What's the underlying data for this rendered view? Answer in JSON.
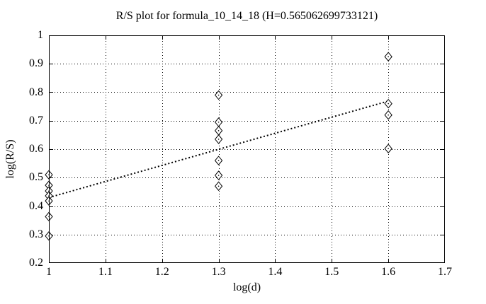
{
  "title": "R/S plot for formula_10_14_18 (H=0.565062699733121)",
  "chart_data": {
    "type": "scatter",
    "title": "R/S plot for formula_10_14_18 (H=0.565062699733121)",
    "xlabel": "log(d)",
    "ylabel": "log(R/S)",
    "xlim": [
      1,
      1.7
    ],
    "ylim": [
      0.2,
      1
    ],
    "xticks": [
      1,
      1.1,
      1.2,
      1.3,
      1.4,
      1.5,
      1.6,
      1.7
    ],
    "xtick_labels": [
      "1",
      "1.1",
      "1.2",
      "1.3",
      "1.4",
      "1.5",
      "1.6",
      "1.7"
    ],
    "yticks": [
      0.2,
      0.3,
      0.4,
      0.5,
      0.6,
      0.7,
      0.8,
      0.9,
      1
    ],
    "ytick_labels": [
      "0.2",
      "0.3",
      "0.4",
      "0.5",
      "0.6",
      "0.7",
      "0.8",
      "0.9",
      "1"
    ],
    "grid": true,
    "grid_style": "dotted",
    "legend": "none",
    "marker": "open-diamond-with-center-dot",
    "marker_color": "#000000",
    "background_color": "#ffffff",
    "hurst_exponent": 0.565062699733121,
    "points": [
      {
        "x": 1.0,
        "y": 0.51
      },
      {
        "x": 1.0,
        "y": 0.473
      },
      {
        "x": 1.0,
        "y": 0.453
      },
      {
        "x": 1.0,
        "y": 0.436
      },
      {
        "x": 1.0,
        "y": 0.418
      },
      {
        "x": 1.0,
        "y": 0.363
      },
      {
        "x": 1.0,
        "y": 0.295
      },
      {
        "x": 1.3,
        "y": 0.79
      },
      {
        "x": 1.3,
        "y": 0.695
      },
      {
        "x": 1.3,
        "y": 0.665
      },
      {
        "x": 1.3,
        "y": 0.635
      },
      {
        "x": 1.3,
        "y": 0.56
      },
      {
        "x": 1.3,
        "y": 0.508
      },
      {
        "x": 1.3,
        "y": 0.47
      },
      {
        "x": 1.6,
        "y": 0.925
      },
      {
        "x": 1.6,
        "y": 0.76
      },
      {
        "x": 1.6,
        "y": 0.72
      },
      {
        "x": 1.6,
        "y": 0.602
      }
    ],
    "fit_line": {
      "style": "dotted",
      "x1": 1.0,
      "y1": 0.43,
      "x2": 1.6,
      "y2": 0.769
    }
  }
}
